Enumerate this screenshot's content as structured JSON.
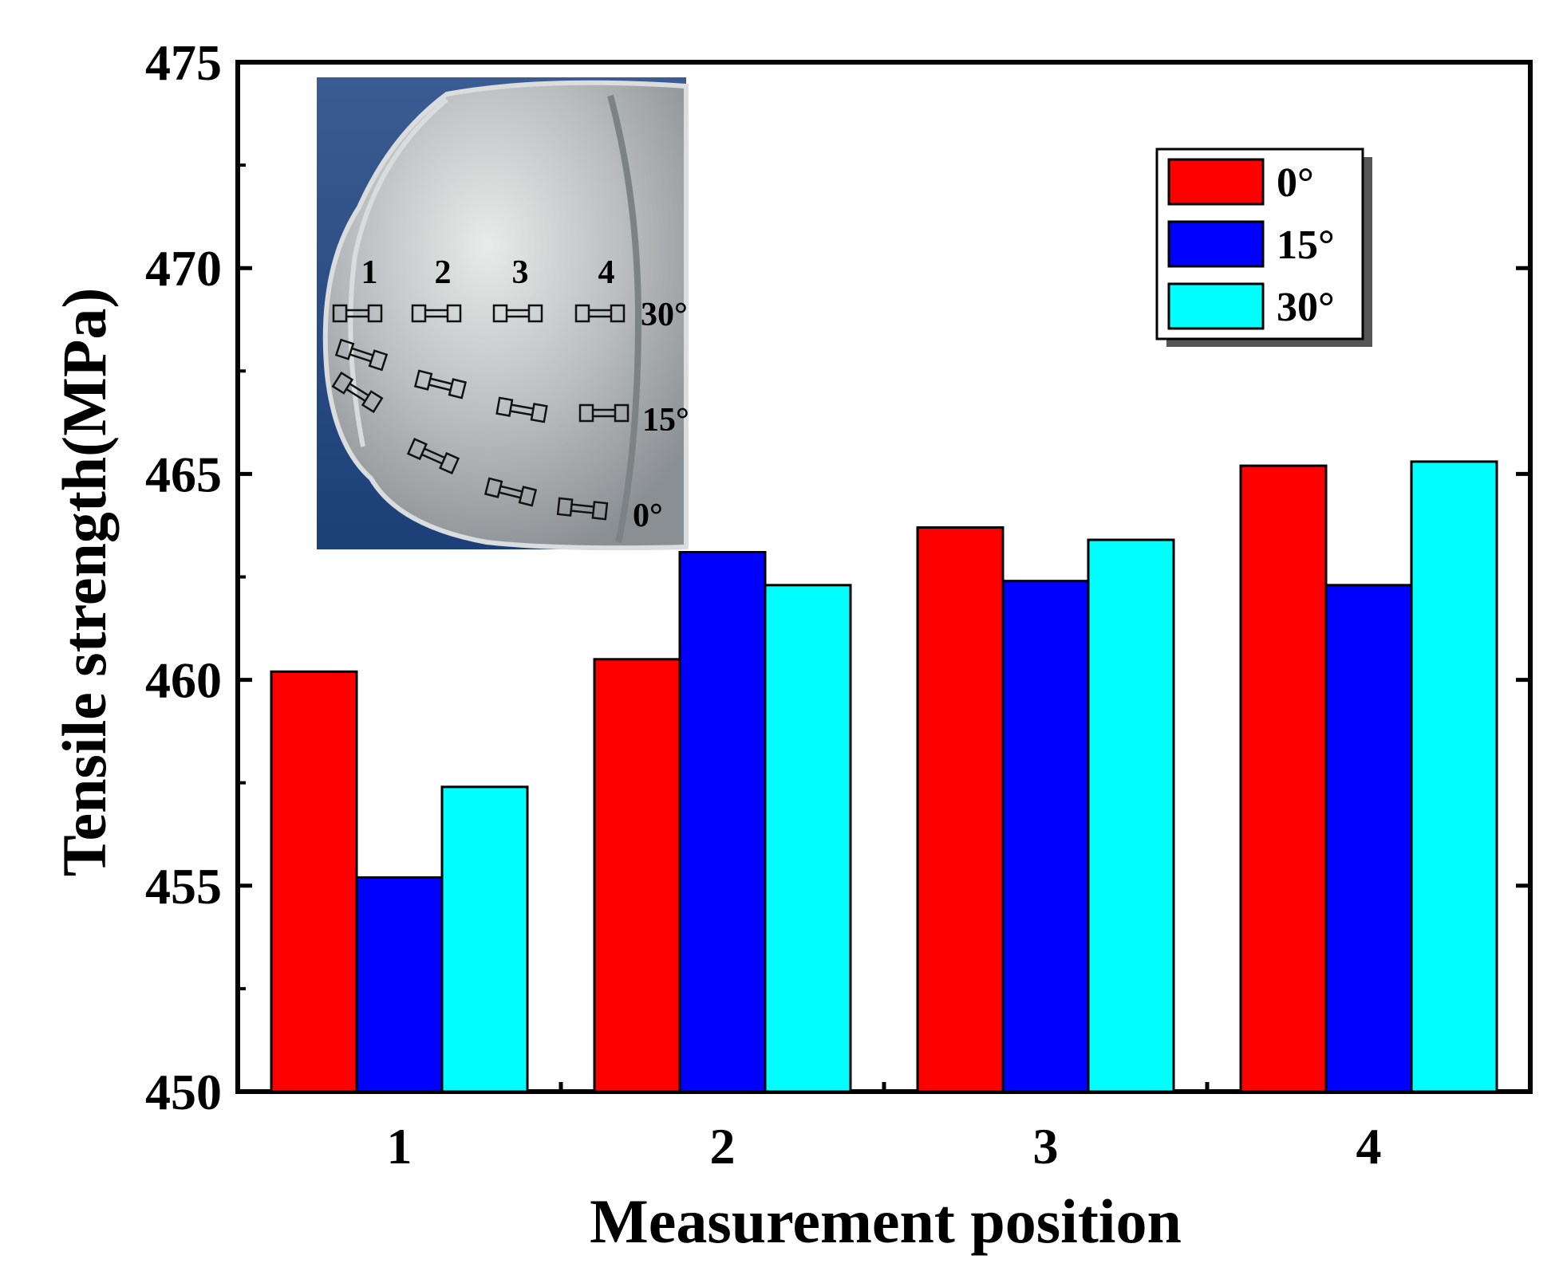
{
  "chart_data": {
    "type": "bar",
    "title": "",
    "xlabel": "Measurement position",
    "ylabel": "Tensile strength(MPa)",
    "ylim": [
      450,
      475
    ],
    "yticks": [
      450,
      455,
      460,
      465,
      470,
      475
    ],
    "categories": [
      "1",
      "2",
      "3",
      "4"
    ],
    "series": [
      {
        "name": "0°",
        "color": "#ff0000",
        "values": [
          460.2,
          460.5,
          463.7,
          465.2
        ]
      },
      {
        "name": "15°",
        "color": "#0000ff",
        "values": [
          455.2,
          463.1,
          462.4,
          462.3
        ]
      },
      {
        "name": "30°",
        "color": "#00ffff",
        "values": [
          457.4,
          462.3,
          463.4,
          465.3
        ]
      }
    ],
    "legend_position": "top-right",
    "grid": false
  },
  "inset": {
    "description_labels": {
      "positions": [
        "1",
        "2",
        "3",
        "4"
      ],
      "angles": [
        "30°",
        "15°",
        "0°"
      ]
    }
  }
}
